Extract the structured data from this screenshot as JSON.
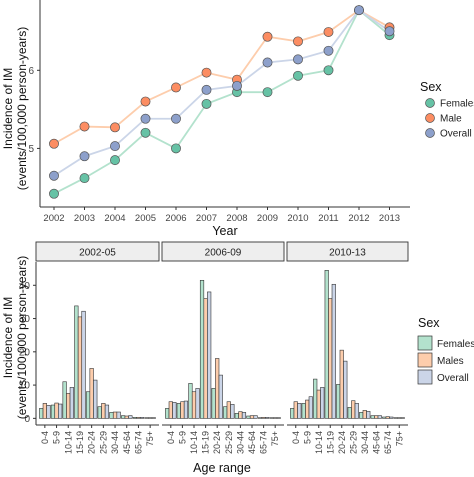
{
  "colors": {
    "Females": "#66c2a5",
    "Male": "#fc8d62",
    "Males": "#fc8d62",
    "Overall": "#8da0cb",
    "line_Females": "#b3e2cd",
    "line_Male": "#fdcdac",
    "line_Overall": "#cbd5e8",
    "bar_Females": "#b3e2cd",
    "bar_Males": "#fdcdac",
    "bar_Overall": "#cbd5e8",
    "strip_fill": "#eeeeee",
    "axis": "#333333"
  },
  "chart_data": [
    {
      "type": "line",
      "xlabel": "Year",
      "ylabel": [
        "Incidence of IM",
        "(events/100,000 person-years)"
      ],
      "x": [
        2002,
        2003,
        2004,
        2005,
        2006,
        2007,
        2008,
        2009,
        2010,
        2011,
        2012,
        2013
      ],
      "yticks": [
        5,
        6
      ],
      "ylim": [
        4.25,
        6.9
      ],
      "grid": false,
      "legend": {
        "title": "Sex",
        "position": "right",
        "entries": [
          "Females",
          "Male",
          "Overall"
        ]
      },
      "series": [
        {
          "name": "Females",
          "values": [
            4.42,
            4.62,
            4.85,
            5.2,
            5.0,
            5.57,
            5.72,
            5.72,
            5.93,
            6.0,
            6.77,
            6.45
          ]
        },
        {
          "name": "Male",
          "values": [
            5.06,
            5.28,
            5.27,
            5.6,
            5.78,
            5.97,
            5.88,
            6.43,
            6.37,
            6.49,
            6.77,
            6.55
          ]
        },
        {
          "name": "Overall",
          "values": [
            4.65,
            4.9,
            5.03,
            5.38,
            5.38,
            5.75,
            5.8,
            6.1,
            6.14,
            6.25,
            6.77,
            6.5
          ]
        }
      ]
    },
    {
      "type": "bar",
      "xlabel": "Age range",
      "ylabel": [
        "Incidence of IM",
        "(events/100,000 person-years)"
      ],
      "categories": [
        "0-4",
        "5-9",
        "10-14",
        "15-19",
        "20-24",
        "25-29",
        "30-44",
        "45-64",
        "65-74",
        "75+"
      ],
      "yticks": [
        0,
        10,
        20,
        30,
        40
      ],
      "ylim": [
        -2,
        47
      ],
      "grid": false,
      "legend": {
        "title": "Sex",
        "position": "right",
        "entries": [
          "Females",
          "Males",
          "Overall"
        ]
      },
      "panels": [
        {
          "label": "2002-05",
          "series": [
            {
              "name": "Females",
              "values": [
                3.0,
                4.0,
                11.0,
                33.8,
                8.0,
                3.5,
                1.8,
                0.8,
                0.3,
                0.2
              ]
            },
            {
              "name": "Males",
              "values": [
                4.5,
                4.6,
                7.5,
                30.5,
                15.0,
                4.5,
                1.9,
                0.7,
                0.3,
                0.2
              ]
            },
            {
              "name": "Overall",
              "values": [
                3.9,
                4.3,
                9.3,
                32.2,
                11.5,
                4.0,
                1.9,
                0.8,
                0.3,
                0.2
              ]
            }
          ]
        },
        {
          "label": "2006-09",
          "series": [
            {
              "name": "Females",
              "values": [
                3.0,
                4.5,
                10.5,
                41.5,
                9.0,
                3.5,
                1.5,
                0.7,
                0.2,
                0.2
              ]
            },
            {
              "name": "Males",
              "values": [
                5.0,
                5.0,
                8.0,
                36.0,
                18.0,
                5.0,
                2.0,
                0.8,
                0.3,
                0.2
              ]
            },
            {
              "name": "Overall",
              "values": [
                4.8,
                5.2,
                9.0,
                38.0,
                13.0,
                4.2,
                1.8,
                0.8,
                0.3,
                0.2
              ]
            }
          ]
        },
        {
          "label": "2010-13",
          "series": [
            {
              "name": "Females",
              "values": [
                3.0,
                4.5,
                11.8,
                44.5,
                10.2,
                3.3,
                1.8,
                0.8,
                0.4,
                0.2
              ]
            },
            {
              "name": "Males",
              "values": [
                5.0,
                5.5,
                8.5,
                36.0,
                20.5,
                5.3,
                2.4,
                0.8,
                0.5,
                0.2
              ]
            },
            {
              "name": "Overall",
              "values": [
                4.5,
                6.5,
                9.3,
                40.3,
                17.2,
                4.5,
                2.1,
                0.8,
                0.4,
                0.2
              ]
            }
          ]
        }
      ]
    }
  ]
}
